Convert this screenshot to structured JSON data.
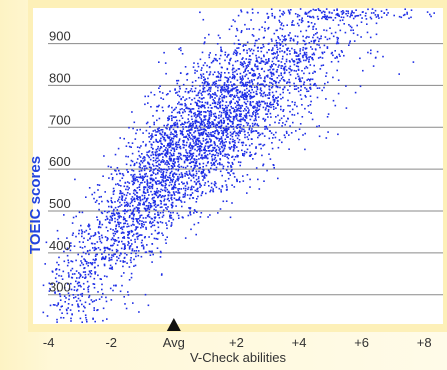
{
  "chart_data": {
    "type": "scatter",
    "title": "",
    "xlabel": "V-Check abilities",
    "ylabel": "TOEIC scores",
    "xlim": [
      -4.5,
      8.6
    ],
    "ylim": [
      230,
      985
    ],
    "grid": "horizontal",
    "point_color": "#1f2fe6",
    "background_color": "#ffffff",
    "frame_color": "#fbe9a0",
    "x_ticks": [
      {
        "value": -4,
        "label": "-4"
      },
      {
        "value": -2,
        "label": "-2"
      },
      {
        "value": 0,
        "label": "Avg"
      },
      {
        "value": 2,
        "label": "+2"
      },
      {
        "value": 4,
        "label": "+4"
      },
      {
        "value": 6,
        "label": "+6"
      },
      {
        "value": 8,
        "label": "+8"
      }
    ],
    "y_ticks": [
      {
        "value": 300,
        "label": "300"
      },
      {
        "value": 400,
        "label": "400"
      },
      {
        "value": 500,
        "label": "500"
      },
      {
        "value": 600,
        "label": "600"
      },
      {
        "value": 700,
        "label": "700"
      },
      {
        "value": 800,
        "label": "800"
      },
      {
        "value": 900,
        "label": "900"
      }
    ],
    "avg_marker": {
      "x": 0,
      "label": "Avg",
      "icon": "triangle-up-marker"
    },
    "density_model": {
      "point_count": 4200,
      "x_mean": 0.8,
      "x_std": 2.4,
      "intercept": 640,
      "slope_low": 95,
      "slope_high": 55,
      "noise_std": 88,
      "cap": 985,
      "floor": 235,
      "seed": 7
    }
  }
}
